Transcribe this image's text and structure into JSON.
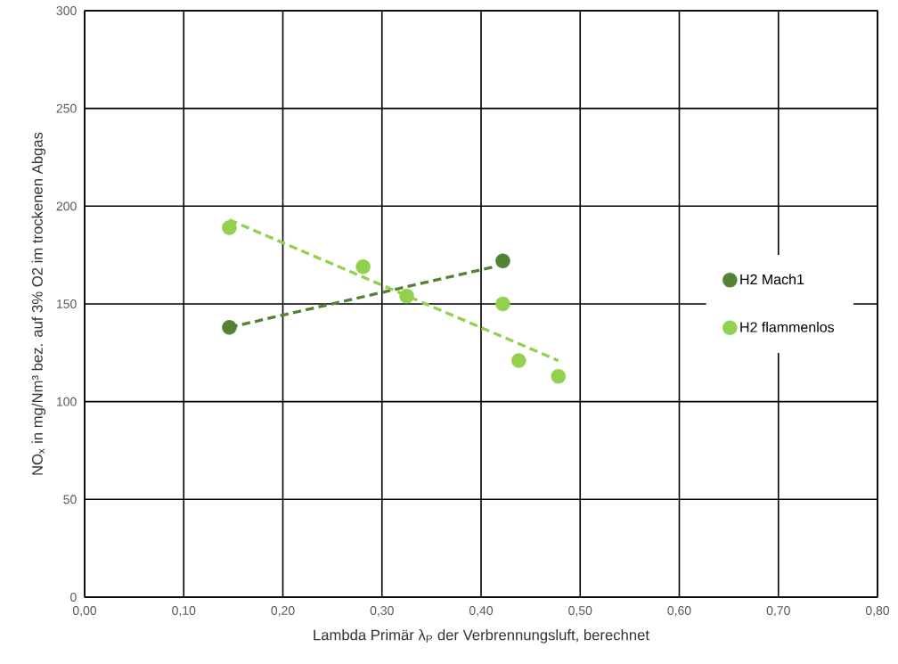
{
  "chart_data": {
    "type": "scatter",
    "xlabel": "Lambda Primär λ$_{P}$ der Verbrennungsluft, berechnet",
    "ylabel": "NO$_{x}$ in mg/Nm³ bez. auf 3% O2 im trockenen Abgas",
    "xlim": [
      0,
      0.8
    ],
    "ylim": [
      0,
      300
    ],
    "xticks": [
      {
        "value": 0,
        "label": "0,00"
      },
      {
        "value": 0.1,
        "label": "0,10"
      },
      {
        "value": 0.2,
        "label": "0,20"
      },
      {
        "value": 0.3,
        "label": "0,30"
      },
      {
        "value": 0.4,
        "label": "0,40"
      },
      {
        "value": 0.5,
        "label": "0,50"
      },
      {
        "value": 0.6,
        "label": "0,60"
      },
      {
        "value": 0.7,
        "label": "0,70"
      },
      {
        "value": 0.8,
        "label": "0,80"
      }
    ],
    "yticks": [
      0,
      50,
      100,
      150,
      200,
      250,
      300
    ],
    "grid": true,
    "legend": "right",
    "series": [
      {
        "type": "line",
        "color": "#548235",
        "line_style": "dashed",
        "marker": "none",
        "x": [
          0.146,
          0.413
        ],
        "values": [
          138,
          169
        ]
      },
      {
        "type": "line",
        "color": "#92d050",
        "line_style": "dashed",
        "marker": "none",
        "x": [
          0.146,
          0.478
        ],
        "values": [
          193,
          121
        ]
      },
      {
        "name": "H2 Mach1",
        "color": "#548235",
        "marker": "circle",
        "x": [
          0.146,
          0.422
        ],
        "values": [
          138,
          172
        ]
      },
      {
        "name": "H2 flammenlos",
        "color": "#92d050",
        "marker": "circle",
        "x": [
          0.146,
          0.281,
          0.325,
          0.422,
          0.438,
          0.478
        ],
        "values": [
          189,
          169,
          154,
          150,
          121,
          113
        ]
      }
    ]
  }
}
